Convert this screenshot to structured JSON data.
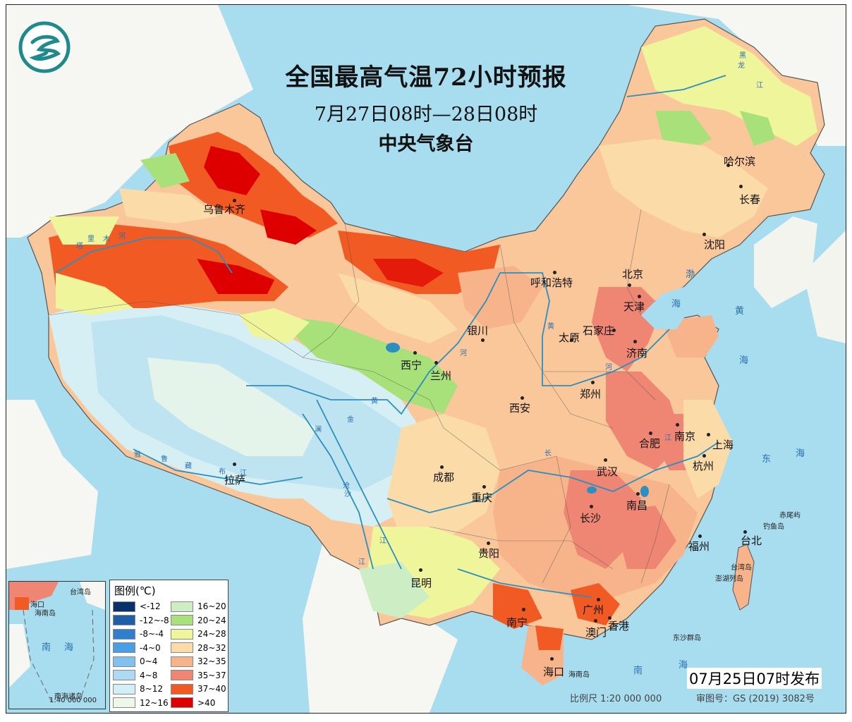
{
  "title": "全国最高气温72小时预报",
  "subtitle": "7月27日08时—28日08时",
  "issuer": "中央气象台",
  "logo": "qixiang-logo",
  "legend": {
    "title": "图例(℃)",
    "items": [
      {
        "label": "<-12",
        "color": "#08306b"
      },
      {
        "label": "-12~-8",
        "color": "#1d5fa8"
      },
      {
        "label": "-8~-4",
        "color": "#2f7fd0"
      },
      {
        "label": "-4~0",
        "color": "#4a9ee6"
      },
      {
        "label": "0~4",
        "color": "#7fc2ef"
      },
      {
        "label": "4~8",
        "color": "#aed9f2"
      },
      {
        "label": "8~12",
        "color": "#d2eef7"
      },
      {
        "label": "12~16",
        "color": "#eef8ea"
      },
      {
        "label": "16~20",
        "color": "#cdeec5"
      },
      {
        "label": "20~24",
        "color": "#a8e07a"
      },
      {
        "label": "24~28",
        "color": "#eef59a"
      },
      {
        "label": "28~32",
        "color": "#fbdca8"
      },
      {
        "label": "32~35",
        "color": "#f7b48a"
      },
      {
        "label": "35~37",
        "color": "#ef8573"
      },
      {
        "label": "37~40",
        "color": "#f15a22"
      },
      {
        "label": ">40",
        "color": "#de0000"
      }
    ]
  },
  "cities": [
    {
      "name": "乌鲁木齐"
    },
    {
      "name": "哈尔滨"
    },
    {
      "name": "长春"
    },
    {
      "name": "沈阳"
    },
    {
      "name": "北京"
    },
    {
      "name": "呼和浩特"
    },
    {
      "name": "天津"
    },
    {
      "name": "石家庄"
    },
    {
      "name": "太原"
    },
    {
      "name": "银川"
    },
    {
      "name": "济南"
    },
    {
      "name": "西宁"
    },
    {
      "name": "兰州"
    },
    {
      "name": "郑州"
    },
    {
      "name": "西安"
    },
    {
      "name": "南京"
    },
    {
      "name": "合肥"
    },
    {
      "name": "上海"
    },
    {
      "name": "杭州"
    },
    {
      "name": "武汉"
    },
    {
      "name": "成都"
    },
    {
      "name": "重庆"
    },
    {
      "name": "拉萨"
    },
    {
      "name": "长沙"
    },
    {
      "name": "南昌"
    },
    {
      "name": "福州"
    },
    {
      "name": "台北"
    },
    {
      "name": "贵阳"
    },
    {
      "name": "昆明"
    },
    {
      "name": "南宁"
    },
    {
      "name": "广州"
    },
    {
      "name": "澳门"
    },
    {
      "name": "香港"
    },
    {
      "name": "海口"
    }
  ],
  "seas": [
    "渤",
    "海",
    "黄",
    "海",
    "东",
    "海",
    "南",
    "海"
  ],
  "islands": [
    "赤尾屿",
    "钓鱼岛",
    "台湾岛",
    "澎湖列岛",
    "东沙群岛",
    "海南岛"
  ],
  "rivers": [
    "黄",
    "河",
    "长",
    "江",
    "黄",
    "河",
    "金",
    "沙",
    "江",
    "澜",
    "沧",
    "江",
    "雅",
    "鲁",
    "藏",
    "布",
    "江",
    "塔",
    "里",
    "木",
    "河",
    "黑",
    "龙",
    "江"
  ],
  "inset": {
    "labels": [
      "台湾岛",
      "海口",
      "海南岛",
      "南",
      "海",
      "南海诸岛"
    ],
    "scale": "1:40 000 000"
  },
  "issue_time": "07月25日07时发布",
  "scale_text": "比例尺 1:20 000 000",
  "review_number": "审图号：GS (2019) 3082号"
}
